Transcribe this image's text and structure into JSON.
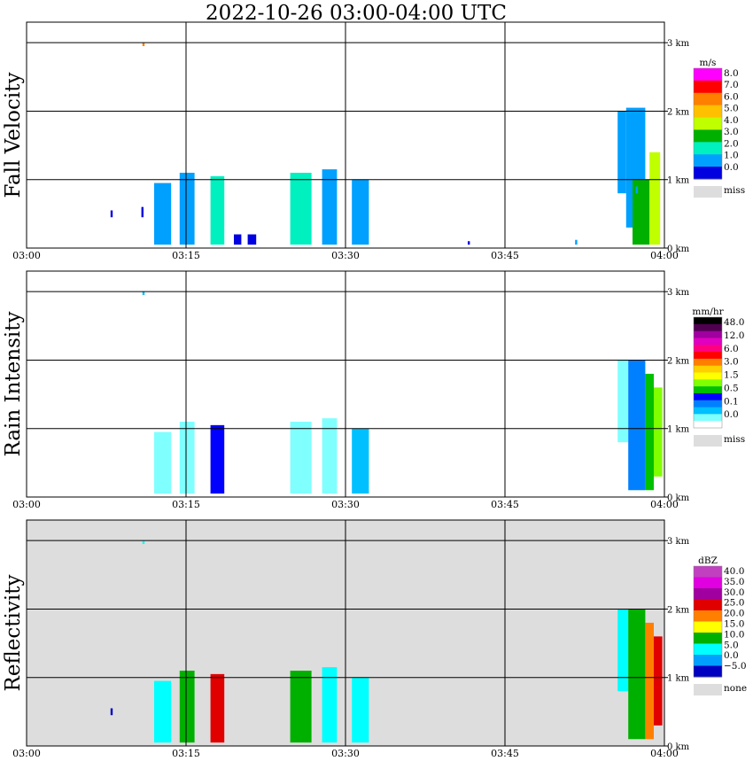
{
  "figure": {
    "title": "2022-10-26   03:00-04:00 UTC"
  },
  "chart_data": [
    {
      "type": "heatmap",
      "panel": "Fall Velocity",
      "ylabel": "Fall Velocity",
      "x_ticks": [
        "03:00",
        "03:15",
        "03:30",
        "03:45",
        "04:00"
      ],
      "x_range_minutes": [
        0,
        60
      ],
      "y_ticks": [
        "0 km",
        "1 km",
        "2 km",
        "3 km"
      ],
      "y_range_km": [
        0,
        3.3
      ],
      "grid": true,
      "colorbar": {
        "unit": "m/s",
        "labels": [
          "8.0",
          "7.0",
          "6.0",
          "5.0",
          "4.0",
          "3.0",
          "2.0",
          "1.0",
          "0.0"
        ],
        "colors": [
          "#ff00ff",
          "#ff0000",
          "#ff7f00",
          "#ffc000",
          "#c0ff00",
          "#00b000",
          "#00f0c0",
          "#00a0ff",
          "#0000e0"
        ],
        "missing_label": "miss",
        "missing_color": "#dddddd"
      },
      "background": "#ffffff",
      "echoes": [
        {
          "x": [
            10.9,
            11.1
          ],
          "y": [
            2.95,
            3.0
          ],
          "level": 6
        },
        {
          "x": [
            7.9,
            8.1
          ],
          "y": [
            0.45,
            0.55
          ],
          "level": 0
        },
        {
          "x": [
            10.8,
            11.0
          ],
          "y": [
            0.45,
            0.6
          ],
          "level": 0
        },
        {
          "x": [
            12.0,
            13.6
          ],
          "y": [
            0.05,
            0.95
          ],
          "level": 1
        },
        {
          "x": [
            14.4,
            15.8
          ],
          "y": [
            0.05,
            1.1
          ],
          "level": 1
        },
        {
          "x": [
            17.3,
            18.6
          ],
          "y": [
            0.05,
            1.05
          ],
          "level": 2
        },
        {
          "x": [
            19.5,
            20.2
          ],
          "y": [
            0.05,
            0.2
          ],
          "level": 0
        },
        {
          "x": [
            20.8,
            21.6
          ],
          "y": [
            0.05,
            0.2
          ],
          "level": 0
        },
        {
          "x": [
            24.8,
            26.8
          ],
          "y": [
            0.05,
            1.1
          ],
          "level": 2
        },
        {
          "x": [
            27.8,
            29.2
          ],
          "y": [
            0.05,
            1.15
          ],
          "level": 1
        },
        {
          "x": [
            30.6,
            32.2
          ],
          "y": [
            0.05,
            1.0
          ],
          "level": 1
        },
        {
          "x": [
            41.5,
            41.7
          ],
          "y": [
            0.05,
            0.1
          ],
          "level": 0
        },
        {
          "x": [
            51.6,
            51.8
          ],
          "y": [
            0.05,
            0.12
          ],
          "level": 1
        },
        {
          "x": [
            55.6,
            56.4
          ],
          "y": [
            0.8,
            2.0
          ],
          "level": 1
        },
        {
          "x": [
            56.4,
            58.2
          ],
          "y": [
            0.3,
            2.05
          ],
          "level": 1
        },
        {
          "x": [
            57.0,
            58.6
          ],
          "y": [
            0.05,
            1.0
          ],
          "level": 3
        },
        {
          "x": [
            58.6,
            59.6
          ],
          "y": [
            0.05,
            1.4
          ],
          "level": 4
        },
        {
          "x": [
            57.3,
            57.5
          ],
          "y": [
            0.8,
            0.9
          ],
          "level": 1
        }
      ]
    },
    {
      "type": "heatmap",
      "panel": "Rain Intensity",
      "ylabel": "Rain Intensity",
      "x_ticks": [
        "03:00",
        "03:15",
        "03:30",
        "03:45",
        "04:00"
      ],
      "x_range_minutes": [
        0,
        60
      ],
      "y_ticks": [
        "0 km",
        "1 km",
        "2 km",
        "3 km"
      ],
      "y_range_km": [
        0,
        3.3
      ],
      "grid": true,
      "colorbar": {
        "unit": "mm/hr",
        "labels": [
          "48.0",
          "12.0",
          "6.0",
          "3.0",
          "1.5",
          "0.5",
          "0.1",
          "0.0"
        ],
        "colors": [
          "#000000",
          "#500050",
          "#a000a0",
          "#e000c0",
          "#ff0080",
          "#ff0000",
          "#ff8000",
          "#ffd000",
          "#ffff00",
          "#80ff00",
          "#00c000",
          "#0000ff",
          "#0080ff",
          "#00c0ff",
          "#80ffff",
          "#ffffff"
        ],
        "missing_label": "miss",
        "missing_color": "#dddddd"
      },
      "background": "#ffffff",
      "echoes": [
        {
          "x": [
            10.9,
            11.1
          ],
          "y": [
            2.95,
            3.0
          ],
          "level": 2
        },
        {
          "x": [
            7.9,
            8.1
          ],
          "y": [
            0.45,
            0.55
          ],
          "level": 0
        },
        {
          "x": [
            10.8,
            11.0
          ],
          "y": [
            0.45,
            0.6
          ],
          "level": 0
        },
        {
          "x": [
            12.0,
            13.6
          ],
          "y": [
            0.05,
            0.95
          ],
          "level": 1
        },
        {
          "x": [
            14.4,
            15.8
          ],
          "y": [
            0.05,
            1.1
          ],
          "level": 1
        },
        {
          "x": [
            17.3,
            18.6
          ],
          "y": [
            0.05,
            1.05
          ],
          "level": 4
        },
        {
          "x": [
            24.8,
            26.8
          ],
          "y": [
            0.05,
            1.1
          ],
          "level": 1
        },
        {
          "x": [
            27.8,
            29.2
          ],
          "y": [
            0.05,
            1.15
          ],
          "level": 1
        },
        {
          "x": [
            30.6,
            32.2
          ],
          "y": [
            0.05,
            1.0
          ],
          "level": 2
        },
        {
          "x": [
            51.6,
            51.8
          ],
          "y": [
            0.05,
            0.12
          ],
          "level": 0
        },
        {
          "x": [
            55.6,
            56.6
          ],
          "y": [
            0.8,
            2.0
          ],
          "level": 1
        },
        {
          "x": [
            56.6,
            58.2
          ],
          "y": [
            0.1,
            2.0
          ],
          "level": 3
        },
        {
          "x": [
            58.2,
            59.0
          ],
          "y": [
            0.1,
            1.8
          ],
          "level": 5
        },
        {
          "x": [
            59.0,
            59.8
          ],
          "y": [
            0.3,
            1.6
          ],
          "level": 6
        }
      ]
    },
    {
      "type": "heatmap",
      "panel": "Reflectivity",
      "ylabel": "Reflectivity",
      "x_ticks": [
        "03:00",
        "03:15",
        "03:30",
        "03:45",
        "04:00"
      ],
      "x_range_minutes": [
        0,
        60
      ],
      "y_ticks": [
        "0 km",
        "1 km",
        "2 km",
        "3 km"
      ],
      "y_range_km": [
        0,
        3.3
      ],
      "grid": true,
      "colorbar": {
        "unit": "dBZ",
        "labels": [
          "40.0",
          "35.0",
          "30.0",
          "25.0",
          "20.0",
          "15.0",
          "10.0",
          "5.0",
          "0.0",
          "−5.0"
        ],
        "colors": [
          "#c040c0",
          "#e000e0",
          "#a000a0",
          "#e00000",
          "#ff8000",
          "#ffff00",
          "#00b000",
          "#00ffff",
          "#00a0ff",
          "#0000c0"
        ],
        "missing_label": "none",
        "missing_color": "#dddddd"
      },
      "background": "#dddddd",
      "echoes": [
        {
          "x": [
            10.9,
            11.1
          ],
          "y": [
            2.95,
            3.0
          ],
          "level": 2
        },
        {
          "x": [
            7.9,
            8.1
          ],
          "y": [
            0.45,
            0.55
          ],
          "level": 0
        },
        {
          "x": [
            12.0,
            13.6
          ],
          "y": [
            0.05,
            0.95
          ],
          "level": 2
        },
        {
          "x": [
            14.4,
            15.8
          ],
          "y": [
            0.05,
            1.1
          ],
          "level": 3
        },
        {
          "x": [
            17.3,
            18.6
          ],
          "y": [
            0.05,
            1.05
          ],
          "level": 6
        },
        {
          "x": [
            24.8,
            26.8
          ],
          "y": [
            0.05,
            1.1
          ],
          "level": 3
        },
        {
          "x": [
            27.8,
            29.2
          ],
          "y": [
            0.05,
            1.15
          ],
          "level": 2
        },
        {
          "x": [
            30.6,
            32.2
          ],
          "y": [
            0.05,
            1.0
          ],
          "level": 2
        },
        {
          "x": [
            55.6,
            56.6
          ],
          "y": [
            0.8,
            2.0
          ],
          "level": 2
        },
        {
          "x": [
            56.6,
            58.2
          ],
          "y": [
            0.1,
            2.0
          ],
          "level": 3
        },
        {
          "x": [
            58.2,
            59.0
          ],
          "y": [
            0.1,
            1.8
          ],
          "level": 5
        },
        {
          "x": [
            59.0,
            59.8
          ],
          "y": [
            0.3,
            1.6
          ],
          "level": 6
        }
      ]
    }
  ]
}
